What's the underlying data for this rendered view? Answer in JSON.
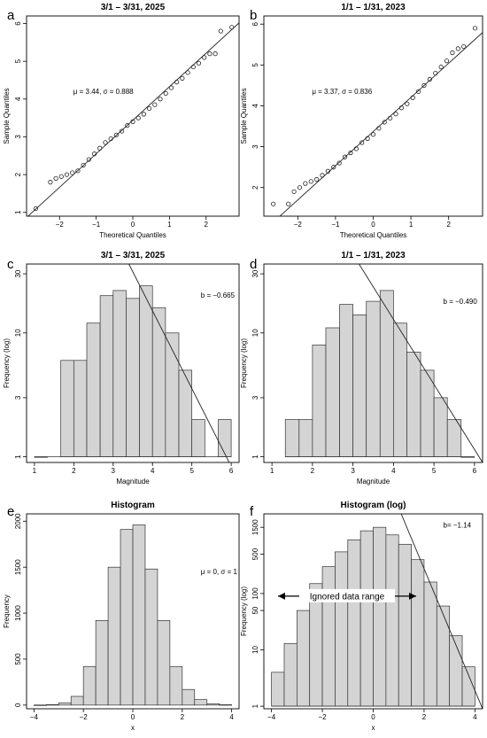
{
  "panels": [
    {
      "letter": "a",
      "chart_data": {
        "type": "scatter",
        "title": "3/1 – 3/31, 2025",
        "xlabel": "Theoretical Quantiles",
        "ylabel": "Sample Quantiles",
        "xlim": [
          -2.9,
          2.9
        ],
        "ylim": [
          0.9,
          6.2
        ],
        "xticks": [
          -2,
          -1,
          0,
          1,
          2
        ],
        "yticks": [
          1,
          2,
          3,
          4,
          5,
          6
        ],
        "annotation": "μ = 3.44, σ = 0.888",
        "reference_line": {
          "intercept": 3.44,
          "slope": 0.888
        },
        "points": [
          [
            -2.65,
            1.1
          ],
          [
            -2.25,
            1.8
          ],
          [
            -2.1,
            1.9
          ],
          [
            -1.95,
            1.95
          ],
          [
            -1.8,
            2.0
          ],
          [
            -1.65,
            2.05
          ],
          [
            -1.5,
            2.1
          ],
          [
            -1.35,
            2.25
          ],
          [
            -1.2,
            2.4
          ],
          [
            -1.05,
            2.55
          ],
          [
            -0.9,
            2.7
          ],
          [
            -0.75,
            2.85
          ],
          [
            -0.6,
            2.95
          ],
          [
            -0.45,
            3.05
          ],
          [
            -0.3,
            3.15
          ],
          [
            -0.15,
            3.3
          ],
          [
            0.0,
            3.4
          ],
          [
            0.15,
            3.5
          ],
          [
            0.3,
            3.6
          ],
          [
            0.45,
            3.75
          ],
          [
            0.6,
            3.85
          ],
          [
            0.75,
            4.0
          ],
          [
            0.9,
            4.15
          ],
          [
            1.05,
            4.3
          ],
          [
            1.2,
            4.45
          ],
          [
            1.35,
            4.55
          ],
          [
            1.5,
            4.7
          ],
          [
            1.65,
            4.85
          ],
          [
            1.8,
            4.95
          ],
          [
            1.95,
            5.1
          ],
          [
            2.1,
            5.2
          ],
          [
            2.25,
            5.2
          ],
          [
            2.4,
            5.8
          ],
          [
            2.7,
            5.9
          ]
        ]
      }
    },
    {
      "letter": "b",
      "chart_data": {
        "type": "scatter",
        "title": "1/1 – 1/31, 2023",
        "xlabel": "Theoretical Quantiles",
        "ylabel": "Sample Quantiles",
        "xlim": [
          -2.9,
          2.9
        ],
        "ylim": [
          1.3,
          6.2
        ],
        "xticks": [
          -2,
          -1,
          0,
          1,
          2
        ],
        "yticks": [
          2,
          3,
          4,
          5,
          6
        ],
        "annotation": "μ = 3.37, σ = 0.836",
        "reference_line": {
          "intercept": 3.37,
          "slope": 0.836
        },
        "points": [
          [
            -2.65,
            1.6
          ],
          [
            -2.25,
            1.6
          ],
          [
            -2.1,
            1.9
          ],
          [
            -1.95,
            2.0
          ],
          [
            -1.8,
            2.1
          ],
          [
            -1.65,
            2.15
          ],
          [
            -1.5,
            2.2
          ],
          [
            -1.35,
            2.3
          ],
          [
            -1.2,
            2.4
          ],
          [
            -1.05,
            2.5
          ],
          [
            -0.9,
            2.6
          ],
          [
            -0.75,
            2.75
          ],
          [
            -0.6,
            2.85
          ],
          [
            -0.45,
            2.95
          ],
          [
            -0.3,
            3.1
          ],
          [
            -0.15,
            3.2
          ],
          [
            0.0,
            3.3
          ],
          [
            0.15,
            3.45
          ],
          [
            0.3,
            3.6
          ],
          [
            0.45,
            3.7
          ],
          [
            0.6,
            3.8
          ],
          [
            0.75,
            3.95
          ],
          [
            0.9,
            4.05
          ],
          [
            1.05,
            4.2
          ],
          [
            1.2,
            4.35
          ],
          [
            1.35,
            4.5
          ],
          [
            1.5,
            4.65
          ],
          [
            1.65,
            4.8
          ],
          [
            1.8,
            4.95
          ],
          [
            1.95,
            5.1
          ],
          [
            2.1,
            5.3
          ],
          [
            2.25,
            5.4
          ],
          [
            2.4,
            5.45
          ],
          [
            2.7,
            5.9
          ]
        ]
      }
    },
    {
      "letter": "c",
      "chart_data": {
        "type": "bar",
        "title": "3/1 – 3/31, 2025",
        "xlabel": "Magnitude",
        "ylabel": "Frequency (log)",
        "log_y": true,
        "xlim": [
          0.8,
          6.2
        ],
        "ylim": [
          0.9,
          36
        ],
        "xticks": [
          1,
          2,
          3,
          4,
          5,
          6
        ],
        "yticks": [
          1,
          3,
          10,
          30
        ],
        "bins": [
          [
            1.0,
            1.33
          ],
          [
            1.67,
            2.0
          ],
          [
            2.0,
            2.33
          ],
          [
            2.33,
            2.67
          ],
          [
            2.67,
            3.0
          ],
          [
            3.0,
            3.33
          ],
          [
            3.33,
            3.67
          ],
          [
            3.67,
            4.0
          ],
          [
            4.0,
            4.33
          ],
          [
            4.33,
            4.67
          ],
          [
            4.67,
            5.0
          ],
          [
            5.0,
            5.33
          ],
          [
            5.67,
            6.0
          ]
        ],
        "values": [
          1,
          6,
          6,
          12,
          20,
          22,
          19,
          24,
          16,
          10,
          5,
          2,
          2
        ],
        "annotation": "b = −0.665",
        "fit_line": {
          "x0": 3.4,
          "y0": 36,
          "x1": 5.95,
          "y1": 0.9
        }
      }
    },
    {
      "letter": "d",
      "chart_data": {
        "type": "bar",
        "title": "1/1 – 1/31, 2023",
        "xlabel": "Magnitude",
        "ylabel": "Frequency (log)",
        "log_y": true,
        "xlim": [
          0.8,
          6.2
        ],
        "ylim": [
          0.9,
          36
        ],
        "xticks": [
          1,
          2,
          3,
          4,
          5,
          6
        ],
        "yticks": [
          1,
          3,
          10,
          30
        ],
        "bins": [
          [
            1.33,
            1.67
          ],
          [
            1.67,
            2.0
          ],
          [
            2.0,
            2.33
          ],
          [
            2.33,
            2.67
          ],
          [
            2.67,
            3.0
          ],
          [
            3.0,
            3.33
          ],
          [
            3.33,
            3.67
          ],
          [
            3.67,
            4.0
          ],
          [
            4.0,
            4.33
          ],
          [
            4.33,
            4.67
          ],
          [
            4.67,
            5.0
          ],
          [
            5.0,
            5.33
          ],
          [
            5.33,
            5.67
          ],
          [
            5.67,
            6.0
          ]
        ],
        "values": [
          2,
          2,
          8,
          11,
          17,
          14,
          18,
          22,
          12,
          7,
          5,
          3,
          2,
          1
        ],
        "annotation": "b = −0.490",
        "fit_line": {
          "x0": 3.15,
          "y0": 36,
          "x1": 6.2,
          "y1": 0.9
        }
      }
    },
    {
      "letter": "e",
      "chart_data": {
        "type": "bar",
        "title": "Histogram",
        "xlabel": "x",
        "ylabel": "Frequency",
        "log_y": false,
        "xlim": [
          -4.3,
          4.3
        ],
        "ylim": [
          -40,
          2080
        ],
        "xticks": [
          -4,
          -2,
          0,
          2,
          4
        ],
        "yticks": [
          0,
          500,
          1000,
          1500,
          2000
        ],
        "bins": [
          [
            -4.0,
            -3.5
          ],
          [
            -3.5,
            -3.0
          ],
          [
            -3.0,
            -2.5
          ],
          [
            -2.5,
            -2.0
          ],
          [
            -2.0,
            -1.5
          ],
          [
            -1.5,
            -1.0
          ],
          [
            -1.0,
            -0.5
          ],
          [
            -0.5,
            0.0
          ],
          [
            0.0,
            0.5
          ],
          [
            0.5,
            1.0
          ],
          [
            1.0,
            1.5
          ],
          [
            1.5,
            2.0
          ],
          [
            2.0,
            2.5
          ],
          [
            2.5,
            3.0
          ],
          [
            3.0,
            3.5
          ],
          [
            3.5,
            4.0
          ]
        ],
        "values": [
          1,
          5,
          25,
          95,
          420,
          920,
          1500,
          1910,
          1960,
          1480,
          920,
          420,
          170,
          60,
          15,
          4
        ],
        "annotation": "μ = 0, σ = 1"
      }
    },
    {
      "letter": "f",
      "chart_data": {
        "type": "bar",
        "title": "Histogram (log)",
        "xlabel": "x",
        "ylabel": "Frequency (log)",
        "log_y": true,
        "xlim": [
          -4.3,
          4.3
        ],
        "ylim": [
          0.9,
          2600
        ],
        "xticks": [
          -4,
          -2,
          0,
          2,
          4
        ],
        "yticks": [
          1,
          10,
          50,
          100,
          500,
          1500
        ],
        "bins": [
          [
            -4.0,
            -3.5
          ],
          [
            -3.5,
            -3.0
          ],
          [
            -3.0,
            -2.5
          ],
          [
            -2.5,
            -2.0
          ],
          [
            -2.0,
            -1.5
          ],
          [
            -1.5,
            -1.0
          ],
          [
            -1.0,
            -0.5
          ],
          [
            -0.5,
            0.0
          ],
          [
            0.0,
            0.5
          ],
          [
            0.5,
            1.0
          ],
          [
            1.0,
            1.5
          ],
          [
            1.5,
            2.0
          ],
          [
            2.0,
            2.5
          ],
          [
            2.5,
            3.0
          ],
          [
            3.0,
            3.5
          ],
          [
            3.5,
            4.0
          ]
        ],
        "values": [
          4,
          13,
          50,
          150,
          300,
          550,
          900,
          1300,
          1500,
          1100,
          750,
          400,
          160,
          60,
          18,
          5
        ],
        "annotation": "b= −1.14",
        "range_label": "Ignored data range",
        "fit_line": {
          "x0": 1.1,
          "y0": 2600,
          "x1": 4.3,
          "y1": 0.9
        }
      }
    }
  ]
}
